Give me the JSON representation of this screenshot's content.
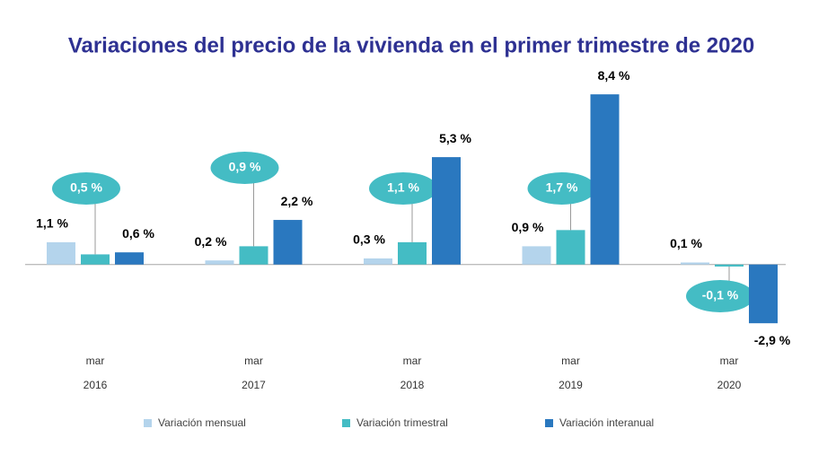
{
  "chart_data": {
    "type": "bar",
    "title": "Variaciones del precio de la vivienda en el primer trimestre de 2020",
    "categories": [
      {
        "month": "mar",
        "year": "2016"
      },
      {
        "month": "mar",
        "year": "2017"
      },
      {
        "month": "mar",
        "year": "2018"
      },
      {
        "month": "mar",
        "year": "2019"
      },
      {
        "month": "mar",
        "year": "2020"
      }
    ],
    "ylim": [
      -4,
      10
    ],
    "series": [
      {
        "name": "Variación mensual",
        "color": "#b4d4ec",
        "values": [
          1.1,
          0.2,
          0.3,
          0.9,
          0.1
        ],
        "value_labels": [
          "1,1 %",
          "0,2 %",
          "0,3 %",
          "0,9 %",
          "0,1 %"
        ]
      },
      {
        "name": "Variación trimestral",
        "color": "#44bcc4",
        "values": [
          0.5,
          0.9,
          1.1,
          1.7,
          -0.1
        ],
        "value_labels": [
          "0,5 %",
          "0,9 %",
          "1,1 %",
          "1,7 %",
          "-0,1 %"
        ]
      },
      {
        "name": "Variación interanual",
        "color": "#2a78bf",
        "values": [
          0.6,
          2.2,
          5.3,
          8.4,
          -2.9
        ],
        "value_labels": [
          "0,6 %",
          "2,2 %",
          "5,3 %",
          "8,4 %",
          "-2,9 %"
        ]
      }
    ]
  }
}
